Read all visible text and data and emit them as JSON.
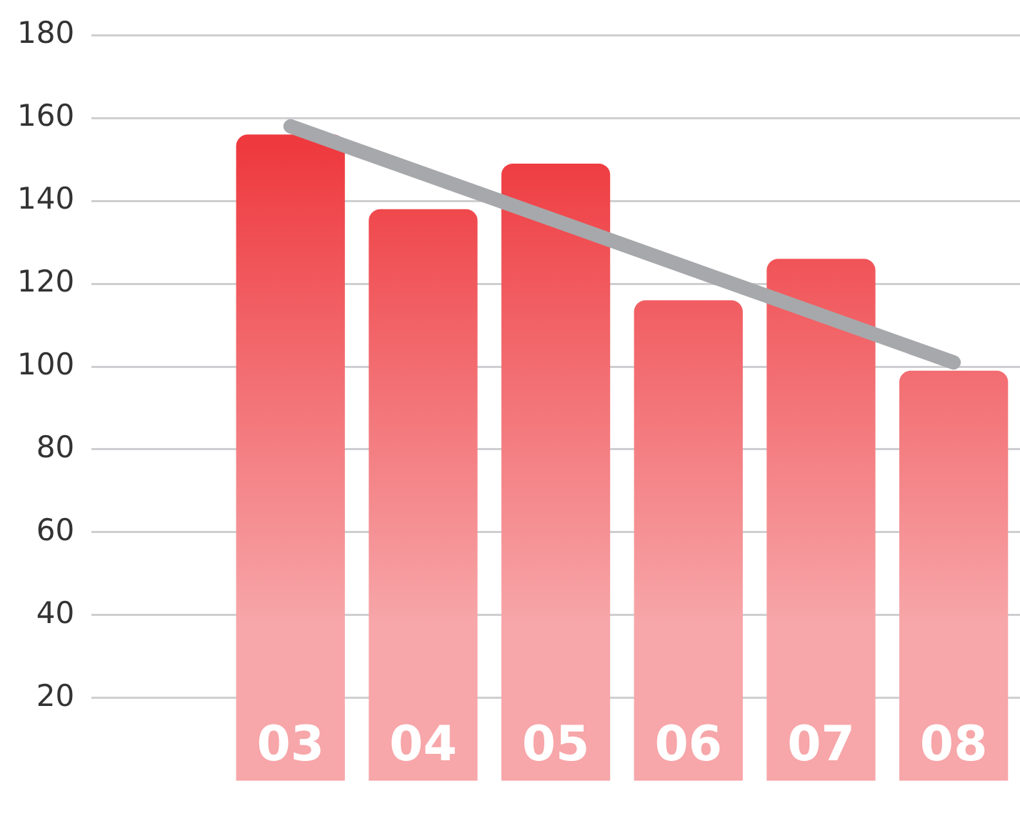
{
  "chart_data": {
    "type": "bar",
    "categories": [
      null,
      "03",
      "04",
      "05",
      "06",
      "07",
      "08"
    ],
    "series": [
      {
        "color": "#ee3a3f",
        "values": [
          null,
          156,
          138,
          149,
          116,
          126,
          99
        ]
      },
      {
        "type": "line",
        "color": "#a7a8ab",
        "x": [
          "03",
          "08"
        ],
        "values": [
          158,
          101
        ]
      }
    ],
    "ylim": [
      0,
      180
    ],
    "yticks": [
      20,
      40,
      60,
      80,
      100,
      120,
      140,
      160,
      180
    ],
    "grid": "y",
    "legend": false,
    "marker": "none"
  }
}
